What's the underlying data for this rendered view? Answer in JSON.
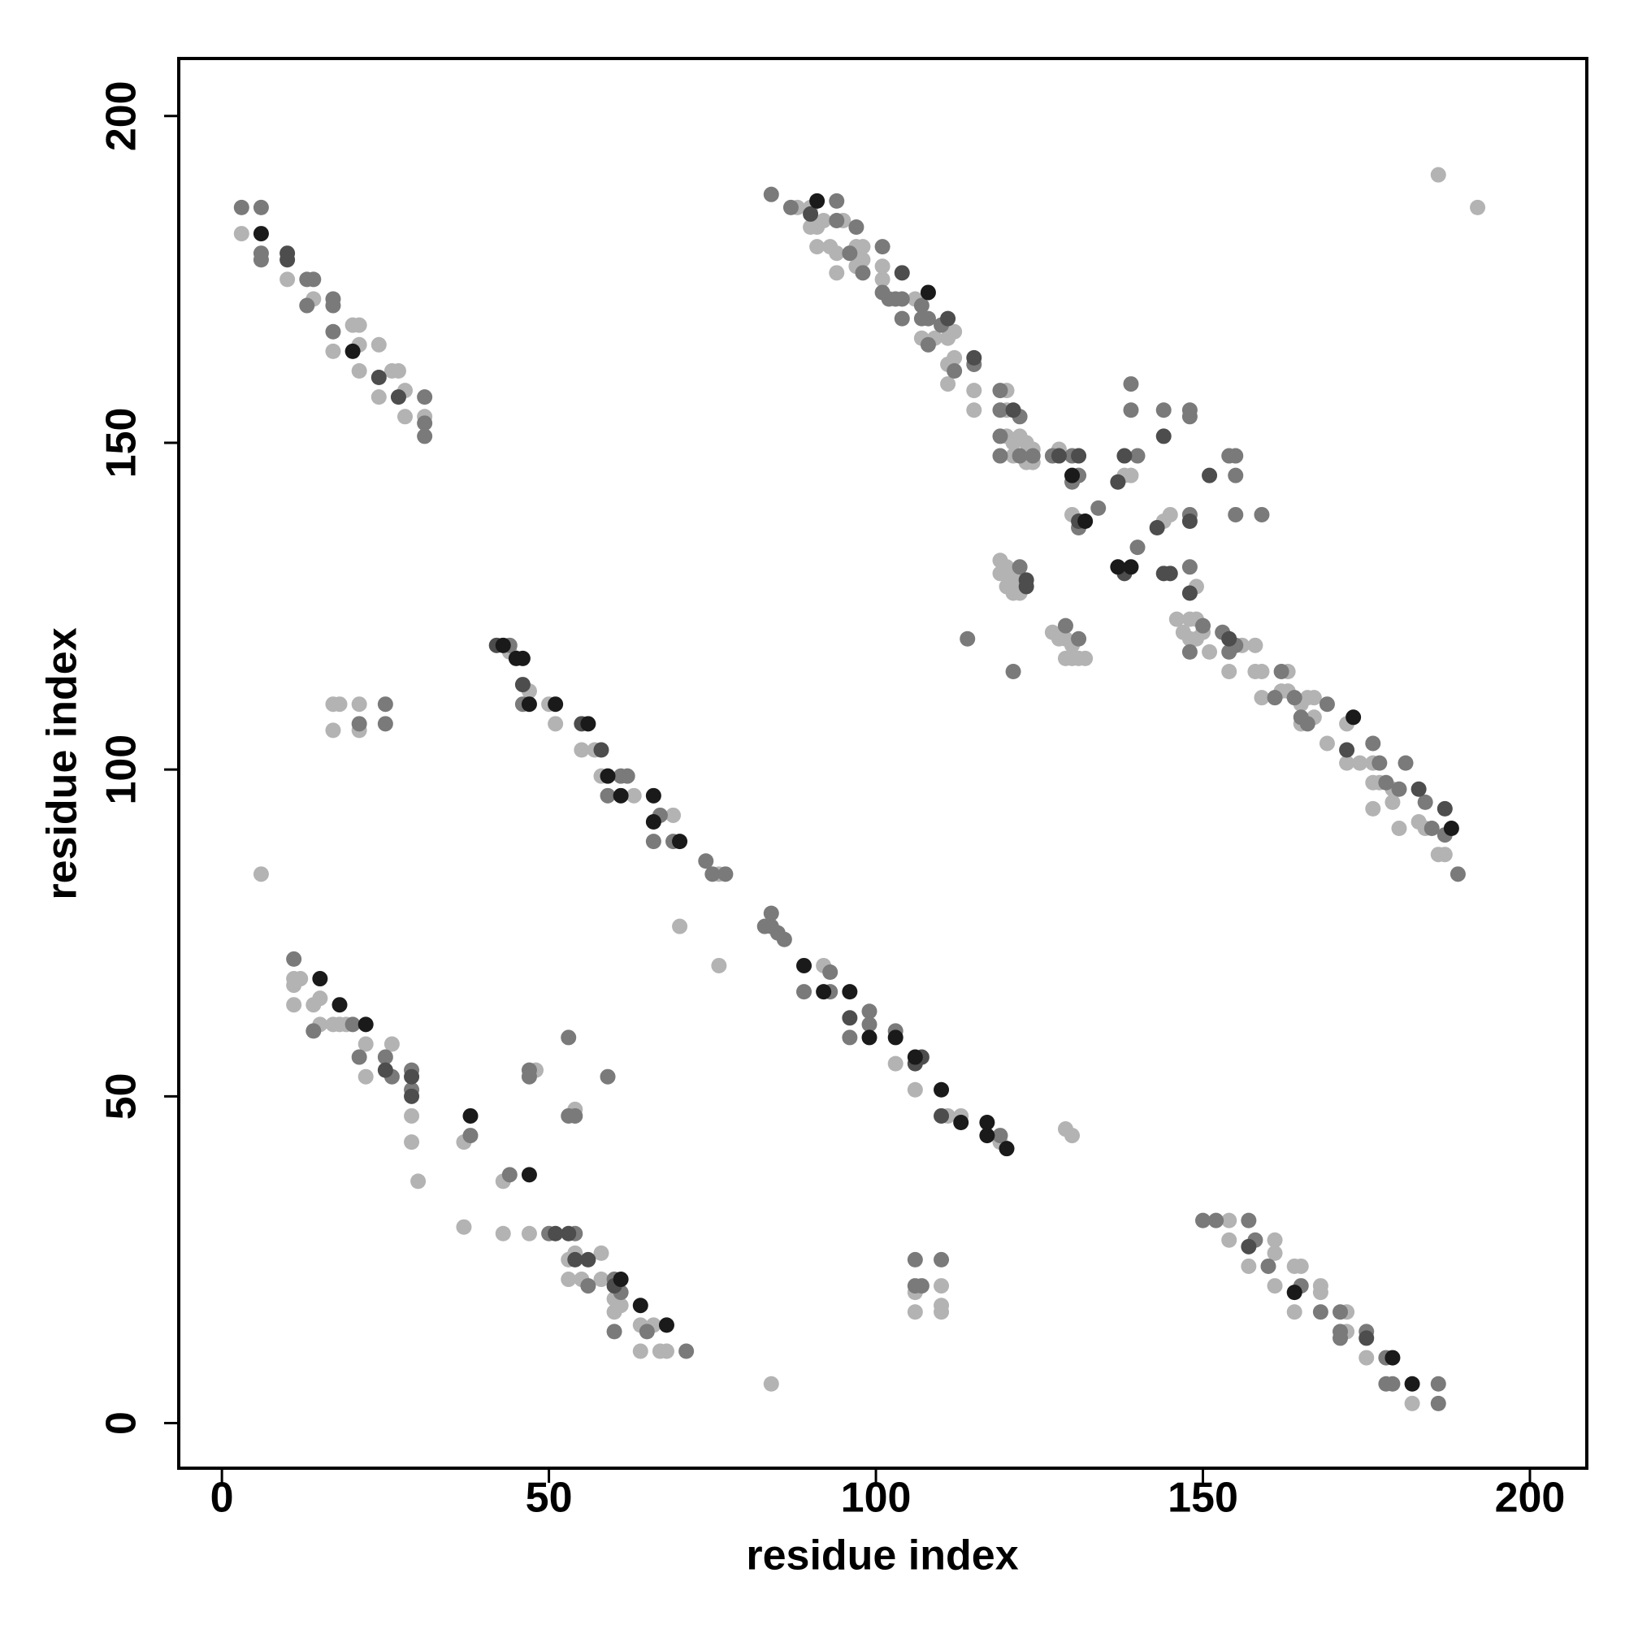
{
  "chart_data": {
    "type": "scatter",
    "x_label": "residue index",
    "y_label": "residue index",
    "xlim": [
      -6.6,
      208.7
    ],
    "ylim": [
      -6.9,
      208.8
    ],
    "xticks": [
      0,
      50,
      100,
      150,
      200
    ],
    "yticks": [
      0,
      50,
      100,
      150,
      200
    ],
    "series": [
      {
        "color": "#b3b3b3",
        "x": [
          3,
          10,
          14,
          17,
          20,
          21,
          21,
          21,
          24,
          24,
          26,
          27,
          28,
          28,
          31,
          44,
          47,
          50,
          51,
          55,
          57,
          58,
          63,
          69,
          76,
          70,
          76,
          92,
          103,
          106,
          111,
          113,
          119,
          129,
          130,
          11,
          11,
          12,
          14,
          15,
          11,
          15,
          17,
          18,
          19,
          22,
          22,
          26,
          29,
          29,
          30,
          37,
          37,
          43,
          48,
          43,
          47,
          53,
          54,
          58,
          53,
          55,
          58,
          60,
          61,
          60,
          64,
          66,
          64,
          67,
          68,
          54,
          17,
          18,
          21,
          17,
          21,
          6,
          154,
          154,
          157,
          161,
          161,
          161,
          164,
          165,
          164,
          168,
          168,
          172,
          172,
          175,
          182,
          84,
          106,
          110,
          106,
          110,
          110,
          88,
          90,
          91,
          92,
          95,
          90,
          91,
          93,
          94,
          94,
          97,
          97,
          98,
          98,
          101,
          101,
          106,
          107,
          109,
          111,
          112,
          111,
          112,
          111,
          115,
          115,
          120,
          120,
          120,
          121,
          122,
          121,
          123,
          123,
          124,
          124,
          128,
          130,
          138,
          139,
          144,
          145,
          149,
          119,
          119,
          120,
          121,
          120,
          121,
          121,
          122,
          127,
          128,
          129,
          130,
          130,
          131,
          132,
          129,
          146,
          147,
          148,
          149,
          148,
          149,
          150,
          151,
          156,
          158,
          154,
          158,
          159,
          159,
          163,
          162,
          163,
          165,
          165,
          166,
          167,
          167,
          169,
          172,
          172,
          174,
          176,
          176,
          177,
          176,
          179,
          179,
          180,
          183,
          184,
          186,
          187,
          186,
          192
        ],
        "values": [
          182,
          175,
          172,
          164,
          168,
          168,
          165,
          161,
          165,
          157,
          161,
          161,
          158,
          154,
          154,
          118,
          112,
          110,
          107,
          103,
          103,
          99,
          96,
          93,
          84,
          76,
          70,
          70,
          55,
          51,
          47,
          47,
          43,
          45,
          44,
          68,
          67,
          68,
          64,
          65,
          64,
          61,
          61,
          61,
          61,
          58,
          53,
          58,
          47,
          43,
          37,
          30,
          43,
          37,
          54,
          29,
          29,
          25,
          26,
          26,
          22,
          22,
          22,
          19,
          18,
          17,
          15,
          15,
          11,
          11,
          11,
          48,
          110,
          110,
          110,
          106,
          106,
          84,
          31,
          28,
          24,
          28,
          26,
          21,
          24,
          24,
          17,
          21,
          20,
          17,
          14,
          10,
          3,
          6,
          20,
          21,
          17,
          17,
          18,
          186,
          186,
          183,
          184,
          184,
          183,
          180,
          180,
          179,
          176,
          180,
          177,
          178,
          180,
          177,
          175,
          172,
          166,
          166,
          166,
          167,
          162,
          163,
          159,
          158,
          155,
          158,
          155,
          151,
          150,
          151,
          148,
          150,
          147,
          147,
          149,
          149,
          139,
          145,
          145,
          138,
          139,
          128,
          132,
          130,
          131,
          130,
          128,
          129,
          127,
          127,
          121,
          120,
          120,
          119,
          117,
          117,
          117,
          117,
          123,
          121,
          123,
          123,
          120,
          120,
          121,
          118,
          119,
          119,
          115,
          115,
          115,
          111,
          115,
          112,
          112,
          110,
          107,
          111,
          111,
          108,
          104,
          107,
          101,
          101,
          101,
          98,
          98,
          94,
          97,
          95,
          91,
          92,
          91,
          87,
          87,
          191,
          186
        ]
      },
      {
        "color": "#7a7a7a",
        "x": [
          3,
          6,
          6,
          6,
          13,
          14,
          13,
          17,
          17,
          17,
          31,
          31,
          31,
          44,
          46,
          59,
          61,
          62,
          67,
          66,
          69,
          74,
          75,
          77,
          83,
          84,
          84,
          85,
          86,
          93,
          89,
          93,
          96,
          99,
          99,
          103,
          119,
          11,
          14,
          20,
          21,
          25,
          26,
          29,
          29,
          38,
          44,
          47,
          47,
          50,
          54,
          56,
          60,
          61,
          60,
          65,
          71,
          53,
          53,
          54,
          59,
          25,
          21,
          25,
          150,
          152,
          157,
          158,
          160,
          165,
          168,
          171,
          171,
          171,
          175,
          178,
          178,
          179,
          186,
          186,
          106,
          110,
          106,
          107,
          84,
          87,
          94,
          94,
          96,
          98,
          97,
          101,
          101,
          102,
          103,
          104,
          104,
          107,
          107,
          108,
          108,
          110,
          112,
          115,
          119,
          119,
          122,
          119,
          119,
          122,
          124,
          127,
          130,
          131,
          130,
          131,
          134,
          140,
          139,
          139,
          144,
          148,
          148,
          154,
          155,
          155,
          155,
          159,
          148,
          148,
          140,
          122,
          114,
          121,
          129,
          131,
          148,
          150,
          153,
          154,
          155,
          161,
          162,
          164,
          165,
          166,
          169,
          176,
          177,
          178,
          180,
          181,
          184,
          185,
          187,
          189
        ],
        "values": [
          186,
          186,
          179,
          178,
          175,
          175,
          171,
          172,
          171,
          167,
          157,
          153,
          151,
          119,
          110,
          96,
          99,
          99,
          93,
          89,
          89,
          86,
          84,
          84,
          76,
          78,
          76,
          75,
          74,
          69,
          66,
          66,
          59,
          63,
          61,
          60,
          44,
          71,
          60,
          61,
          56,
          56,
          53,
          54,
          51,
          44,
          38,
          54,
          53,
          29,
          29,
          21,
          22,
          20,
          14,
          14,
          11,
          59,
          47,
          47,
          53,
          110,
          107,
          107,
          31,
          31,
          31,
          28,
          24,
          21,
          17,
          17,
          14,
          13,
          14,
          10,
          6,
          6,
          6,
          3,
          25,
          25,
          21,
          21,
          188,
          186,
          187,
          184,
          179,
          176,
          183,
          180,
          173,
          172,
          172,
          172,
          169,
          171,
          169,
          169,
          165,
          168,
          161,
          162,
          158,
          155,
          154,
          151,
          148,
          148,
          148,
          148,
          148,
          145,
          144,
          137,
          140,
          148,
          155,
          159,
          155,
          155,
          154,
          148,
          148,
          145,
          139,
          139,
          139,
          131,
          134,
          131,
          120,
          115,
          122,
          120,
          118,
          122,
          121,
          118,
          119,
          111,
          115,
          111,
          108,
          107,
          110,
          104,
          101,
          98,
          97,
          101,
          95,
          91,
          90,
          84
        ]
      },
      {
        "color": "#4d4d4d",
        "x": [
          10,
          10,
          24,
          27,
          42,
          46,
          55,
          58,
          96,
          106,
          107,
          110,
          25,
          29,
          29,
          51,
          53,
          54,
          56,
          60,
          175,
          157,
          90,
          104,
          111,
          115,
          121,
          128,
          131,
          131,
          137,
          138,
          144,
          151,
          143,
          148,
          144,
          145,
          148,
          138,
          123,
          123,
          154,
          172,
          183,
          187
        ],
        "values": [
          179,
          178,
          160,
          157,
          119,
          113,
          107,
          103,
          62,
          55,
          56,
          47,
          54,
          53,
          50,
          29,
          29,
          25,
          25,
          21,
          13,
          27,
          185,
          176,
          169,
          163,
          155,
          148,
          148,
          138,
          144,
          148,
          151,
          145,
          137,
          138,
          130,
          130,
          127,
          130,
          129,
          128,
          120,
          103,
          97,
          94
        ]
      },
      {
        "color": "#1a1a1a",
        "x": [
          6,
          20,
          43,
          45,
          46,
          47,
          51,
          56,
          59,
          61,
          66,
          66,
          70,
          89,
          92,
          96,
          99,
          103,
          106,
          110,
          113,
          117,
          117,
          120,
          15,
          18,
          22,
          38,
          47,
          61,
          64,
          68,
          164,
          179,
          182,
          91,
          108,
          130,
          132,
          137,
          139,
          173,
          188
        ],
        "values": [
          182,
          164,
          119,
          117,
          117,
          110,
          110,
          107,
          99,
          96,
          96,
          92,
          89,
          70,
          66,
          66,
          59,
          59,
          56,
          51,
          46,
          46,
          44,
          42,
          68,
          64,
          61,
          47,
          38,
          22,
          18,
          15,
          20,
          10,
          6,
          187,
          173,
          145,
          138,
          131,
          131,
          108,
          91
        ]
      }
    ]
  }
}
